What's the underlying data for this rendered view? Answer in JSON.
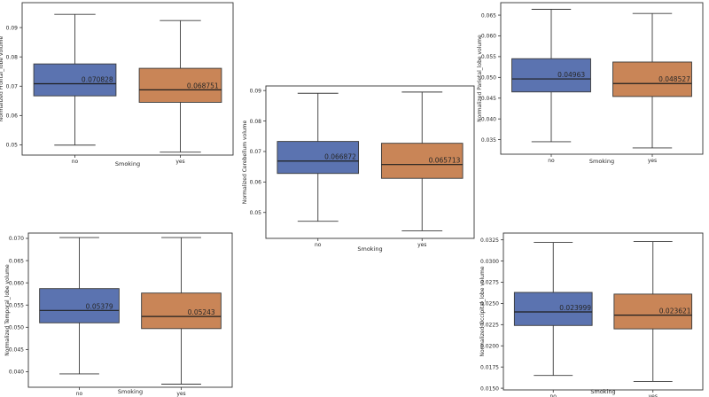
{
  "colors": {
    "no": "#5b73b0",
    "yes": "#c98557",
    "frame": "#333333",
    "line": "#3a3a3a"
  },
  "chart_data": [
    {
      "type": "box",
      "ylabel": "Normalized Frontal_lobe volume",
      "xlabel": "Smoking",
      "categories": [
        "no",
        "yes"
      ],
      "ylim": [
        0.0465,
        0.0985
      ],
      "yticks": [
        0.05,
        0.06,
        0.07,
        0.08,
        0.09
      ],
      "ytick_labels": [
        "0.05",
        "0.06",
        "0.07",
        "0.08",
        "0.09"
      ],
      "boxes": [
        {
          "category": "no",
          "whisker_low": 0.0499,
          "q1": 0.0667,
          "median": 0.070828,
          "q3": 0.0776,
          "whisker_high": 0.0945,
          "label": "0.070828"
        },
        {
          "category": "yes",
          "whisker_low": 0.0475,
          "q1": 0.0645,
          "median": 0.068751,
          "q3": 0.0761,
          "whisker_high": 0.0924,
          "label": "0.068751"
        }
      ]
    },
    {
      "type": "box",
      "ylabel": "Normalized Cerebellum volume",
      "xlabel": "Smoking",
      "categories": [
        "no",
        "yes"
      ],
      "ylim": [
        0.0415,
        0.0915
      ],
      "yticks": [
        0.05,
        0.06,
        0.07,
        0.08,
        0.09
      ],
      "ytick_labels": [
        "0.05",
        "0.06",
        "0.07",
        "0.08",
        "0.09"
      ],
      "boxes": [
        {
          "category": "no",
          "whisker_low": 0.0471,
          "q1": 0.0628,
          "median": 0.066872,
          "q3": 0.0733,
          "whisker_high": 0.0891,
          "label": "0.066872"
        },
        {
          "category": "yes",
          "whisker_low": 0.044,
          "q1": 0.0612,
          "median": 0.065713,
          "q3": 0.0727,
          "whisker_high": 0.0895,
          "label": "0.065713"
        }
      ]
    },
    {
      "type": "box",
      "ylabel": "Normalized Parietal_lobe volume",
      "xlabel": "Smoking",
      "categories": [
        "no",
        "yes"
      ],
      "ylim": [
        0.0315,
        0.068
      ],
      "yticks": [
        0.035,
        0.04,
        0.045,
        0.05,
        0.055,
        0.06,
        0.065
      ],
      "ytick_labels": [
        "0.035",
        "0.040",
        "0.045",
        "0.050",
        "0.055",
        "0.060",
        "0.065"
      ],
      "boxes": [
        {
          "category": "no",
          "whisker_low": 0.0345,
          "q1": 0.0465,
          "median": 0.04963,
          "q3": 0.0545,
          "whisker_high": 0.0664,
          "label": "0.04963"
        },
        {
          "category": "yes",
          "whisker_low": 0.033,
          "q1": 0.0454,
          "median": 0.048527,
          "q3": 0.0537,
          "whisker_high": 0.0654,
          "label": "0.048527"
        }
      ]
    },
    {
      "type": "box",
      "ylabel": "Normalized Temporal_lobe volume",
      "xlabel": "Smoking",
      "categories": [
        "no",
        "yes"
      ],
      "ylim": [
        0.0365,
        0.0712
      ],
      "yticks": [
        0.04,
        0.045,
        0.05,
        0.055,
        0.06,
        0.065,
        0.07
      ],
      "ytick_labels": [
        "0.040",
        "0.045",
        "0.050",
        "0.055",
        "0.060",
        "0.065",
        "0.070"
      ],
      "boxes": [
        {
          "category": "no",
          "whisker_low": 0.0395,
          "q1": 0.051,
          "median": 0.05379,
          "q3": 0.0587,
          "whisker_high": 0.0702,
          "label": "0.05379"
        },
        {
          "category": "yes",
          "whisker_low": 0.0372,
          "q1": 0.0497,
          "median": 0.05243,
          "q3": 0.0577,
          "whisker_high": 0.0702,
          "label": "0.05243"
        }
      ]
    },
    {
      "type": "box",
      "ylabel": "Normalized Occipital_lobe volume",
      "xlabel": "Smoking",
      "categories": [
        "no",
        "yes"
      ],
      "ylim": [
        0.0148,
        0.0333
      ],
      "yticks": [
        0.015,
        0.0175,
        0.02,
        0.0225,
        0.025,
        0.0275,
        0.03,
        0.0325
      ],
      "ytick_labels": [
        "0.0150",
        "0.0175",
        "0.0200",
        "0.0225",
        "0.0250",
        "0.0275",
        "0.0300",
        "0.0325"
      ],
      "boxes": [
        {
          "category": "no",
          "whisker_low": 0.0165,
          "q1": 0.0224,
          "median": 0.023999,
          "q3": 0.0263,
          "whisker_high": 0.0322,
          "label": "0.023999"
        },
        {
          "category": "yes",
          "whisker_low": 0.0158,
          "q1": 0.022,
          "median": 0.023621,
          "q3": 0.0261,
          "whisker_high": 0.0323,
          "label": "0.023621"
        }
      ]
    }
  ]
}
